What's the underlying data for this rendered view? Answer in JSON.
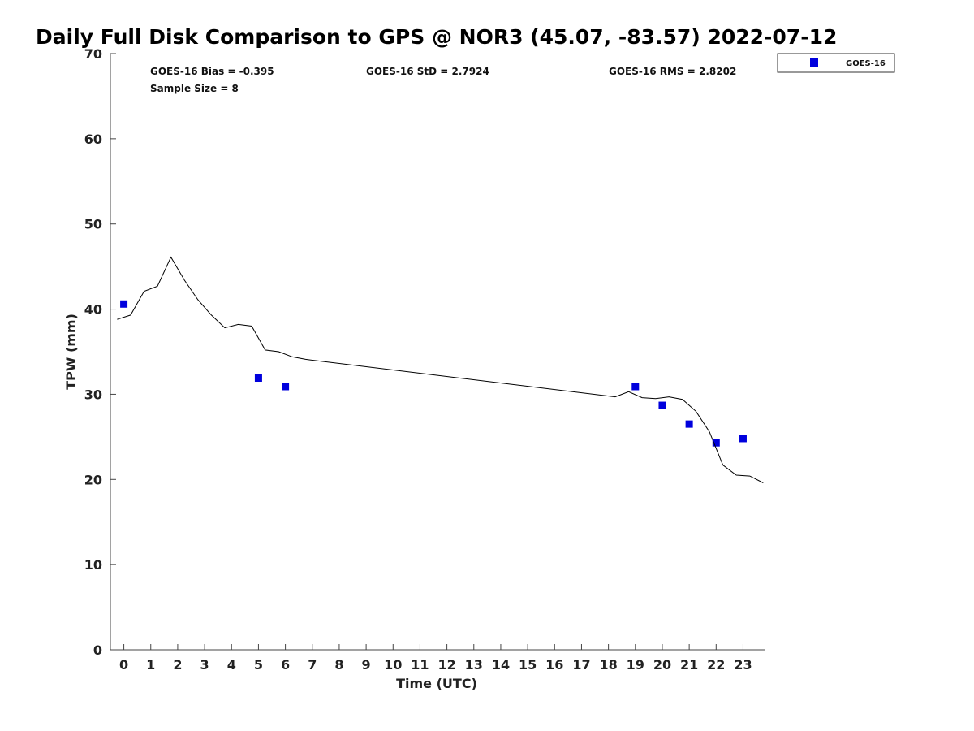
{
  "chart_data": {
    "type": "scatter",
    "title": "Daily Full Disk Comparison to GPS @ NOR3 (45.07, -83.57) 2022-07-12",
    "xlabel": "Time (UTC)",
    "ylabel": "TPW (mm)",
    "xlim": [
      -0.5,
      23.8
    ],
    "ylim": [
      0,
      70
    ],
    "x_ticks": [
      "0",
      "1",
      "2",
      "3",
      "4",
      "5",
      "6",
      "7",
      "8",
      "9",
      "10",
      "11",
      "12",
      "13",
      "14",
      "15",
      "16",
      "17",
      "18",
      "19",
      "20",
      "21",
      "22",
      "23"
    ],
    "y_ticks": [
      "0",
      "10",
      "20",
      "30",
      "40",
      "50",
      "60",
      "70"
    ],
    "grid": false,
    "legend_position": "outside-top-right",
    "stats": {
      "bias": "GOES-16 Bias = -0.395",
      "std": "GOES-16 StD = 2.7924",
      "rms": "GOES-16 RMS = 2.8202",
      "sample": "Sample Size = 8"
    },
    "series": [
      {
        "name": "GOES-16",
        "kind": "scatter",
        "color": "#0000dd",
        "x": [
          0,
          5,
          6,
          19,
          20,
          21,
          22,
          23
        ],
        "y": [
          40.6,
          31.9,
          30.9,
          30.9,
          28.7,
          26.5,
          24.3,
          24.8
        ]
      },
      {
        "kind": "line",
        "color": "#000000",
        "x": [
          -0.25,
          0.25,
          0.75,
          1.25,
          1.75,
          2.25,
          2.75,
          3.25,
          3.75,
          4.25,
          4.75,
          5.25,
          5.75,
          6.25,
          6.75,
          18.25,
          18.75,
          19.25,
          19.75,
          20.25,
          20.75,
          21.25,
          21.75,
          22.25,
          22.75,
          23.25,
          23.75
        ],
        "y": [
          38.8,
          39.3,
          42.1,
          42.7,
          46.1,
          43.4,
          41.1,
          39.3,
          37.8,
          38.2,
          38.0,
          35.2,
          35.0,
          34.4,
          34.1,
          29.7,
          30.3,
          29.6,
          29.5,
          29.7,
          29.4,
          28.0,
          25.6,
          21.7,
          20.5,
          20.4,
          19.6
        ]
      }
    ]
  }
}
